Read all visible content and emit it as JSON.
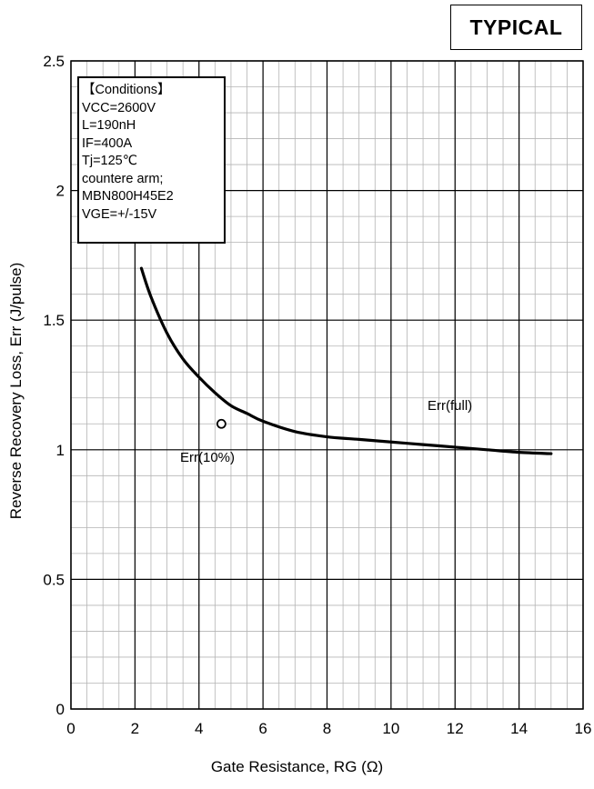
{
  "badge": "TYPICAL",
  "conditions": [
    "【Conditions】",
    "VCC=2600V",
    "L=190nH",
    "IF=400A",
    "Tj=125℃",
    "countere arm;",
    "MBN800H45E2",
    "VGE=+/-15V"
  ],
  "chart_data": {
    "type": "line",
    "title": "",
    "xlabel": "Gate Resistance, RG (Ω)",
    "ylabel": "Reverse Recovery Loss, Err (J/pulse)",
    "xlim": [
      0,
      16
    ],
    "ylim": [
      0,
      2.5
    ],
    "xticks": [
      "0",
      "2",
      "4",
      "6",
      "8",
      "10",
      "12",
      "14",
      "16"
    ],
    "yticks": [
      "0",
      "0.5",
      "1",
      "1.5",
      "2",
      "2.5"
    ],
    "grid": true,
    "minor_grid": true,
    "series": [
      {
        "name": "Err(full)",
        "x": [
          2.2,
          2.5,
          3.0,
          3.5,
          4.0,
          4.5,
          5.0,
          5.5,
          6.0,
          7.0,
          8.0,
          9.0,
          10.0,
          11.0,
          12.0,
          13.0,
          14.0,
          15.0
        ],
        "y": [
          1.7,
          1.59,
          1.45,
          1.35,
          1.28,
          1.22,
          1.17,
          1.14,
          1.11,
          1.07,
          1.05,
          1.04,
          1.03,
          1.02,
          1.01,
          1.0,
          0.99,
          0.985
        ],
        "color": "#000000"
      },
      {
        "name": "Err(10%)",
        "x": [
          4.7
        ],
        "y": [
          1.1
        ],
        "marker": "open-circle",
        "color": "#000000"
      }
    ],
    "annotations": [
      "Err(full)",
      "Err(10%)"
    ]
  }
}
